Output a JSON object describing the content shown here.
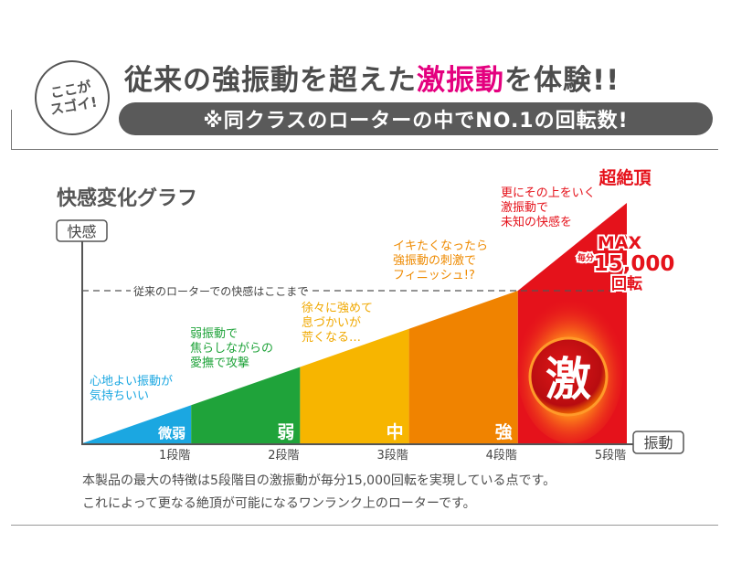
{
  "header": {
    "badge_line1": "ここが",
    "badge_line2": "スゴイ!",
    "headline_pre": "従来の強振動を超えた",
    "headline_highlight": "激振動",
    "headline_post": "を体験!!",
    "subheadline": "※同クラスのローターの中でNO.1の回転数!"
  },
  "colors": {
    "highlight": "#e4007f",
    "level1": "#1ba7e1",
    "level2": "#1fa33a",
    "level3": "#f7b500",
    "level4": "#f08300",
    "level5": "#e5121b"
  },
  "chart_data": {
    "type": "area",
    "title": "快感変化グラフ",
    "ylabel": "快感",
    "xlabel": "振動",
    "categories": [
      "1段階",
      "2段階",
      "3段階",
      "4段階",
      "5段階"
    ],
    "level_labels": [
      "微弱",
      "弱",
      "中",
      "強",
      "激"
    ],
    "values": [
      1,
      2,
      3,
      4,
      6.3
    ],
    "reference_line": {
      "value": 4,
      "label": "従来のローターでの快感はここまで"
    },
    "annotations": [
      {
        "lines": [
          "心地よい振動が",
          "気持ちいい"
        ],
        "color": "#1ba7e1"
      },
      {
        "lines": [
          "弱振動で",
          "焦らしながらの",
          "愛撫で攻撃"
        ],
        "color": "#1fa33a"
      },
      {
        "lines": [
          "徐々に強めて",
          "息づかいが",
          "荒くなる…"
        ],
        "color": "#f0a800"
      },
      {
        "lines": [
          "イキたくなったら",
          "強振動の刺激で",
          "フィニッシュ!?"
        ],
        "color": "#ee8a00"
      },
      {
        "lines": [
          "更にその上をいく",
          "激振動で",
          "未知の快感を"
        ],
        "color": "#e5121b"
      }
    ],
    "peak_label": "超絶頂",
    "max_label": "MAX",
    "per_minute": "毎分",
    "rpm": "15,000",
    "rpm_unit": "回転"
  },
  "description": {
    "line1": "本製品の最大の特徴は5段階目の激振動が毎分15,000回転を実現している点です。",
    "line2": "これによって更なる絶頂が可能になるワンランク上のローターです。"
  }
}
